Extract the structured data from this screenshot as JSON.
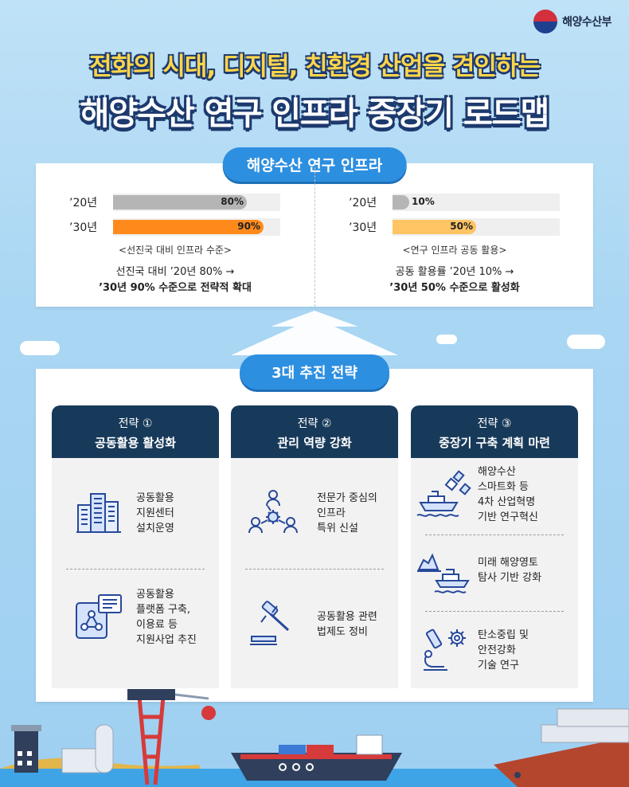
{
  "logo": {
    "text": "해양수산부"
  },
  "title": {
    "line1": "전화의 시대, 디지털, 친환경 산업을 견인하는",
    "line2": "해양수산 연구 인프라 중장기 로드맵"
  },
  "infra": {
    "heading": "해양수산 연구 인프라",
    "left": {
      "rows": [
        {
          "year": "’20년",
          "label": "80%",
          "value": 80,
          "color": "#b5b5b5"
        },
        {
          "year": "’30년",
          "label": "90%",
          "value": 90,
          "color": "#ff8a1c"
        }
      ],
      "note": "<선진국 대비 인프라 수준>",
      "desc1": "선진국 대비 ’20년 80% →",
      "desc2": "’30년 90% 수준으로 전략적 확대"
    },
    "right": {
      "rows": [
        {
          "year": "’20년",
          "label": "10%",
          "value": 10,
          "color": "#b5b5b5"
        },
        {
          "year": "’30년",
          "label": "50%",
          "value": 50,
          "color": "#ffc463"
        }
      ],
      "note": "<연구 인프라 공동 활용>",
      "desc1": "공동 활용률 ’20년 10% →",
      "desc2": "’30년 50% 수준으로 활성화"
    }
  },
  "strategy": {
    "heading": "3대 추진 전략",
    "cards": [
      {
        "num": "전략 ①",
        "title": "공동활용 활성화",
        "items": [
          {
            "icon": "building-icon",
            "text": "공동활용\n지원센터\n설치운영"
          },
          {
            "icon": "platform-network-icon",
            "text": "공동활용\n플랫폼 구축,\n이용료 등\n지원사업 추진"
          }
        ]
      },
      {
        "num": "전략 ②",
        "title": "관리 역량 강화",
        "items": [
          {
            "icon": "expert-network-icon",
            "text": "전문가 중심의\n인프라\n특위 신설"
          },
          {
            "icon": "gavel-icon",
            "text": "공동활용 관련\n법제도 정비"
          }
        ]
      },
      {
        "num": "전략 ③",
        "title": "중장기 구축 계획 마련",
        "items": [
          {
            "icon": "satellite-ship-icon",
            "text": "해양수산\n스마트화 등\n4차 산업혁명\n기반 연구혁신"
          },
          {
            "icon": "iceberg-ship-icon",
            "text": "미래 해양영토\n탐사 기반 강화"
          },
          {
            "icon": "microscope-gear-icon",
            "text": "탄소중립 및\n안전강화\n기술 연구"
          }
        ]
      }
    ]
  }
}
